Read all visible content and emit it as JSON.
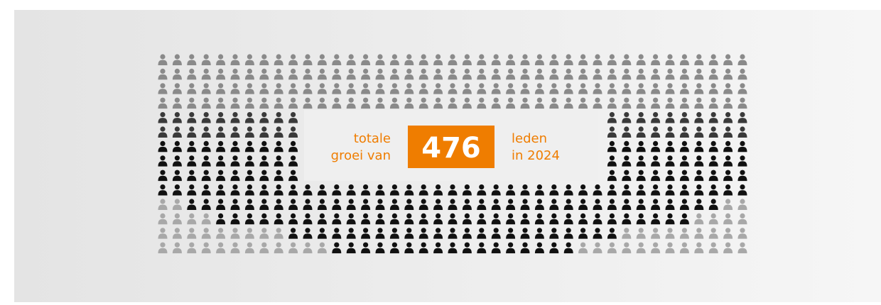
{
  "left_text": [
    "totale",
    "groei van"
  ],
  "number": "476",
  "right_text": [
    "leden",
    "in 2024"
  ]
}
